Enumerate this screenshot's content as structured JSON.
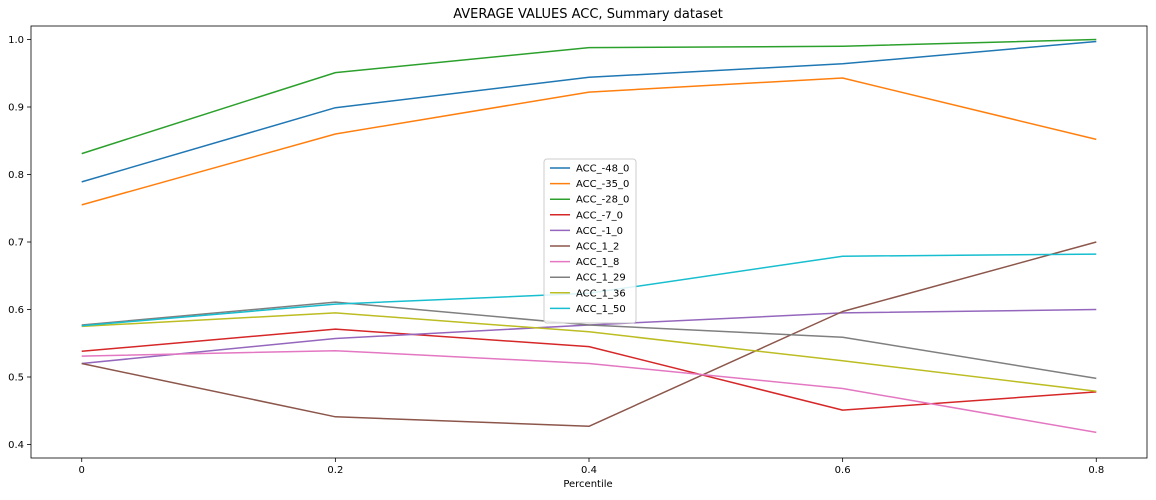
{
  "chart_data": {
    "type": "line",
    "title": "AVERAGE VALUES ACC, Summary dataset",
    "xlabel": "Percentile",
    "ylabel": "",
    "x": [
      0,
      0.2,
      0.4,
      0.6,
      0.8
    ],
    "x_tick_labels": [
      "0",
      "0.2",
      "0.4",
      "0.6",
      "0.8"
    ],
    "xlim": [
      -0.04,
      0.84
    ],
    "ylim": [
      0.38,
      1.02
    ],
    "y_ticks": [
      0.4,
      0.5,
      0.6,
      0.7,
      0.8,
      0.9,
      1.0
    ],
    "y_tick_labels": [
      "0.4",
      "0.5",
      "0.6",
      "0.7",
      "0.8",
      "0.9",
      "1.0"
    ],
    "grid": false,
    "legend_position": "center",
    "series": [
      {
        "name": "ACC_-48_0",
        "color": "#1f77b4",
        "values": [
          0.789,
          0.899,
          0.944,
          0.964,
          0.997
        ]
      },
      {
        "name": "ACC_-35_0",
        "color": "#ff7f0e",
        "values": [
          0.755,
          0.86,
          0.922,
          0.943,
          0.852
        ]
      },
      {
        "name": "ACC_-28_0",
        "color": "#2ca02c",
        "values": [
          0.831,
          0.951,
          0.988,
          0.99,
          1.0
        ]
      },
      {
        "name": "ACC_-7_0",
        "color": "#d62728",
        "values": [
          0.538,
          0.571,
          0.545,
          0.451,
          0.478
        ]
      },
      {
        "name": "ACC_-1_0",
        "color": "#9467bd",
        "values": [
          0.52,
          0.557,
          0.577,
          0.595,
          0.6
        ]
      },
      {
        "name": "ACC_1_2",
        "color": "#8c564b",
        "values": [
          0.52,
          0.441,
          0.427,
          0.597,
          0.7
        ]
      },
      {
        "name": "ACC_1_8",
        "color": "#e377c2",
        "values": [
          0.531,
          0.539,
          0.52,
          0.483,
          0.418
        ]
      },
      {
        "name": "ACC_1_29",
        "color": "#7f7f7f",
        "values": [
          0.577,
          0.611,
          0.577,
          0.559,
          0.498
        ]
      },
      {
        "name": "ACC_1_36",
        "color": "#bcbd22",
        "values": [
          0.575,
          0.595,
          0.567,
          0.524,
          0.479
        ]
      },
      {
        "name": "ACC_1_50",
        "color": "#17becf",
        "values": [
          0.576,
          0.608,
          0.624,
          0.679,
          0.682
        ]
      }
    ]
  }
}
